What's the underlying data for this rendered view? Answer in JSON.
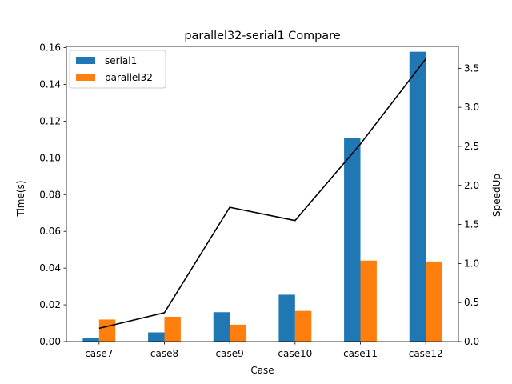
{
  "chart_data": {
    "type": "bar",
    "title": "parallel32-serial1 Compare",
    "xlabel": "Case",
    "ylabel": "Time(s)",
    "y2label": "SpeedUp",
    "categories": [
      "case7",
      "case8",
      "case9",
      "case10",
      "case11",
      "case12"
    ],
    "ylim": [
      0,
      0.1607
    ],
    "y_ticks": [
      0.0,
      0.02,
      0.04,
      0.06,
      0.08,
      0.1,
      0.12,
      0.14,
      0.16
    ],
    "y_tick_labels": [
      "0.00",
      "0.02",
      "0.04",
      "0.06",
      "0.08",
      "0.10",
      "0.12",
      "0.14",
      "0.16"
    ],
    "y2lim": [
      0,
      3.78
    ],
    "y2_ticks": [
      0.0,
      0.5,
      1.0,
      1.5,
      2.0,
      2.5,
      3.0,
      3.5
    ],
    "y2_tick_labels": [
      "0.0",
      "0.5",
      "1.0",
      "1.5",
      "2.0",
      "2.5",
      "3.0",
      "3.5"
    ],
    "series": [
      {
        "name": "serial1",
        "values": [
          0.0019,
          0.005,
          0.016,
          0.0255,
          0.111,
          0.1578
        ],
        "color": "#1f77b4"
      },
      {
        "name": "parallel32",
        "values": [
          0.012,
          0.0135,
          0.0092,
          0.0167,
          0.0441,
          0.0436
        ],
        "color": "#ff7f0e"
      }
    ],
    "line_series": {
      "axis": "right",
      "values": [
        0.17,
        0.37,
        1.72,
        1.55,
        2.53,
        3.62
      ],
      "color": "#000000"
    },
    "legend": "top-left",
    "grid": false
  }
}
